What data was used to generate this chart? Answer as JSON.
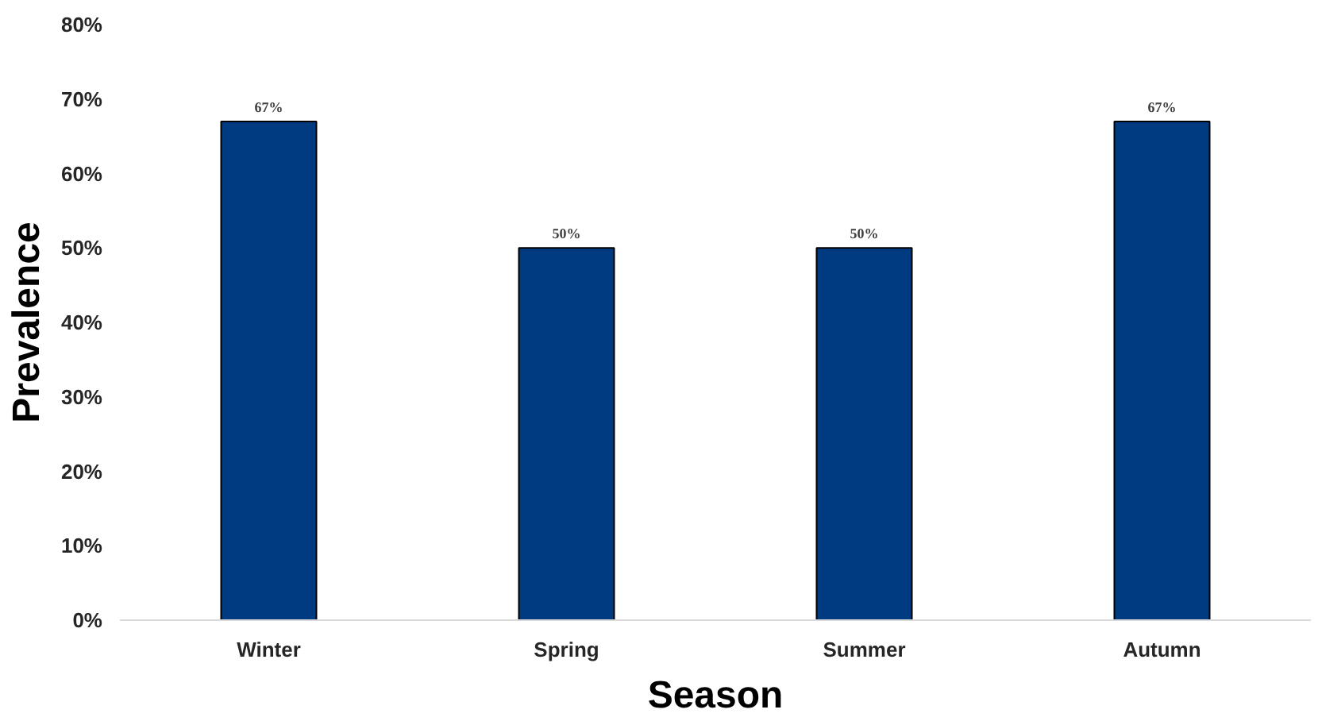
{
  "chart_data": {
    "type": "bar",
    "xlabel": "Season",
    "ylabel": "Prevalence",
    "categories": [
      "Winter",
      "Spring",
      "Summer",
      "Autumn"
    ],
    "values": [
      67,
      50,
      50,
      67
    ],
    "value_labels": [
      "67%",
      "50%",
      "50%",
      "67%"
    ],
    "color": "#003a80",
    "ylim": [
      0,
      80
    ],
    "yticks": [
      {
        "value": 0,
        "label": "0%"
      },
      {
        "value": 10,
        "label": "10%"
      },
      {
        "value": 20,
        "label": "20%"
      },
      {
        "value": 30,
        "label": "30%"
      },
      {
        "value": 40,
        "label": "40%"
      },
      {
        "value": 50,
        "label": "50%"
      },
      {
        "value": 60,
        "label": "60%"
      },
      {
        "value": 70,
        "label": "70%"
      },
      {
        "value": 80,
        "label": "80%"
      }
    ],
    "grid": false
  }
}
